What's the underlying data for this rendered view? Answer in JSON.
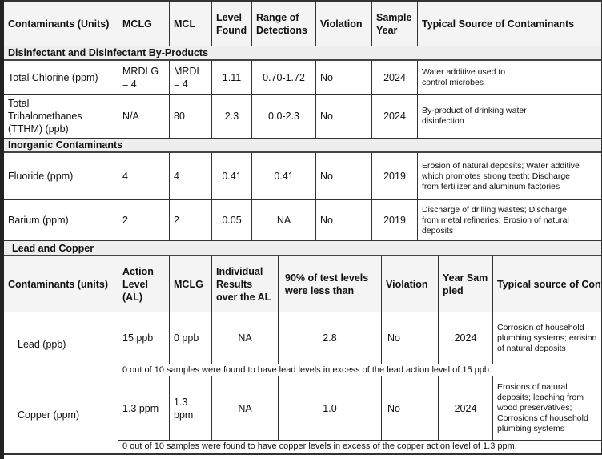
{
  "table1": {
    "headers": [
      "Contaminants (Units)",
      "MCLG",
      "MCL",
      "Level Found",
      "Range of Detections",
      "Violation",
      "Sample Year",
      "Typical Source of Contaminants"
    ],
    "sections": [
      {
        "title": "Disinfectant and Disinfectant By-Products",
        "rows": [
          [
            "Total Chlorine (ppm)",
            "MRDLG = 4",
            "MRDL = 4",
            "1.11",
            "0.70-1.72",
            "No",
            "2024",
            "Water additive used to control microbes"
          ],
          [
            "Total Trihalomethanes (TTHM) (ppb)",
            "N/A",
            "80",
            "2.3",
            "0.0-2.3",
            "No",
            "2024",
            "By-product of drinking water disinfection"
          ]
        ]
      },
      {
        "title": "Inorganic Contaminants",
        "rows": [
          [
            "Fluoride (ppm)",
            "4",
            "4",
            "0.41",
            "0.41",
            "No",
            "2019",
            "Erosion of natural deposits; Water additive which promotes strong teeth; Discharge from fertilizer and aluminum factories"
          ],
          [
            "Barium (ppm)",
            "2",
            "2",
            "0.05",
            "NA",
            "No",
            "2019",
            "Discharge of drilling wastes; Discharge from metal refineries; Erosion of natural deposits"
          ]
        ]
      }
    ]
  },
  "table2": {
    "title": "Lead and Copper",
    "headers": [
      "Contaminants (units)",
      "Action Level (AL)",
      "MCLG",
      "Individual Results over the AL",
      "90% of test levels were less than",
      "Violation",
      "Year Sampled",
      "Typical source of Contaminants"
    ],
    "rows": [
      {
        "cells": [
          "Lead (ppb)",
          "15 ppb",
          "0 ppb",
          "NA",
          "2.8",
          "No",
          "2024",
          "Corrosion of household plumbing systems; erosion of natural deposits"
        ],
        "note": "0  out of 10 samples were found to have lead levels in excess of the lead action level of 15 ppb."
      },
      {
        "cells": [
          "Copper (ppm)",
          "1.3 ppm",
          "1.3 ppm",
          "NA",
          "1.0",
          "No",
          "2024",
          "Erosions of natural deposits; leaching from wood preservatives; Corrosions of household plumbing systems"
        ],
        "note": "0 out of 10  samples were found to have copper levels in excess of the copper action level of 1.3 ppm."
      }
    ]
  }
}
